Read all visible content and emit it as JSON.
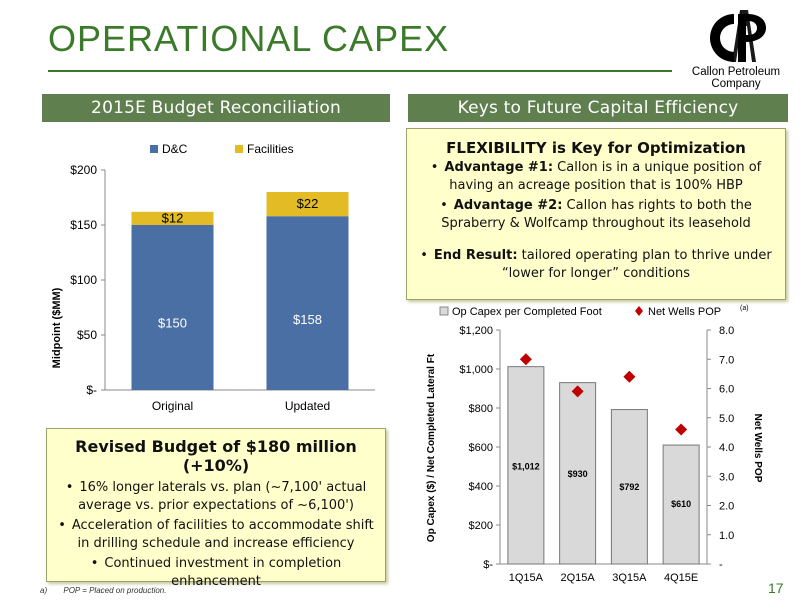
{
  "title": "OPERATIONAL CAPEX",
  "logo": {
    "company_line1": "Callon Petroleum",
    "company_line2": "Company"
  },
  "left_header": "2015E Budget Reconciliation",
  "right_header": "Keys to Future Capital Efficiency",
  "flexibility": {
    "title": "FLEXIBILITY is Key for Optimization",
    "bullets": [
      {
        "bold": "Advantage #1:",
        "text": " Callon is in a unique position of having an acreage position that is 100% HBP"
      },
      {
        "bold": "Advantage #2:",
        "text": " Callon has rights to both the Spraberry & Wolfcamp throughout its leasehold"
      },
      {
        "bold": "End Result:",
        "text": " tailored operating plan to thrive under “lower for longer” conditions"
      }
    ]
  },
  "revised": {
    "title": "Revised Budget of $180 million (+10%)",
    "bullets": [
      "16% longer laterals vs. plan (~7,100' actual average vs. prior expectations of ~6,100')",
      "Acceleration of facilities to accommodate shift in drilling schedule and increase efficiency",
      "Continued investment in completion enhancement"
    ]
  },
  "footnote": {
    "marker": "a)",
    "text": "POP = Placed on production."
  },
  "page_number": "17",
  "chart_data": [
    {
      "type": "bar",
      "stacked": true,
      "categories": [
        "Original",
        "Updated"
      ],
      "series": [
        {
          "name": "D&C",
          "values": [
            150,
            158
          ],
          "labels": [
            "$150",
            "$158"
          ],
          "color": "#4a6fa5"
        },
        {
          "name": "Facilities",
          "values": [
            12,
            22
          ],
          "labels": [
            "$12",
            "$22"
          ],
          "color": "#e3bb24"
        }
      ],
      "ylabel": "Midpoint ($MM)",
      "ylim": [
        0,
        200
      ],
      "yticks": [
        0,
        50,
        100,
        150,
        200
      ],
      "ytick_labels": [
        "$-",
        "$50",
        "$100",
        "$150",
        "$200"
      ],
      "legend": "top",
      "grid": false
    },
    {
      "type": "bar",
      "categories": [
        "1Q15A",
        "2Q15A",
        "3Q15A",
        "4Q15E"
      ],
      "series": [
        {
          "name": "Op Capex per Completed Foot",
          "values": [
            1012,
            930,
            792,
            610
          ],
          "labels": [
            "$1,012",
            "$930",
            "$792",
            "$610"
          ],
          "color": "#d9d9d9",
          "axis": "left"
        },
        {
          "name": "Net Wells POP",
          "superscript": "(a)",
          "values": [
            7.0,
            5.9,
            6.4,
            4.6
          ],
          "marker": "diamond",
          "color": "#c00000",
          "axis": "right"
        }
      ],
      "ylabel": "Op Capex ($) / Net Completed Lateral Ft",
      "ylim": [
        0,
        1200
      ],
      "yticks": [
        0,
        200,
        400,
        600,
        800,
        1000,
        1200
      ],
      "ytick_labels": [
        "$-",
        "$200",
        "$400",
        "$600",
        "$800",
        "$1,000",
        "$1,200"
      ],
      "y2label": "Net Wells POP",
      "y2lim": [
        0,
        8
      ],
      "y2ticks": [
        0,
        1,
        2,
        3,
        4,
        5,
        6,
        7,
        8
      ],
      "y2tick_labels": [
        "-",
        "1.0",
        "2.0",
        "3.0",
        "4.0",
        "5.0",
        "6.0",
        "7.0",
        "8.0"
      ],
      "legend": "top",
      "grid": false
    }
  ]
}
